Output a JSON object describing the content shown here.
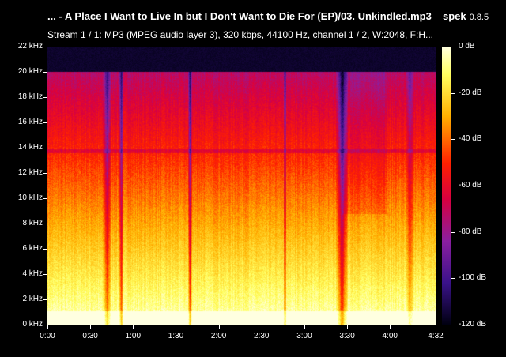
{
  "window": {
    "file_title": "... - A Place I Want to Live In but I Don't Want to Die For (EP)/03. Unkindled.mp3",
    "app_name": "spek",
    "app_version": "0.8.5",
    "stream_info": "Stream 1 / 1: MP3 (MPEG audio layer 3), 320 kbps, 44100 Hz, channel 1 / 2, W:2048, F:H..."
  },
  "freq_axis": [
    "0 kHz",
    "2 kHz",
    "4 kHz",
    "6 kHz",
    "8 kHz",
    "10 kHz",
    "12 kHz",
    "14 kHz",
    "16 kHz",
    "18 kHz",
    "20 kHz",
    "22 kHz"
  ],
  "time_axis": [
    "0:00",
    "0:30",
    "1:00",
    "1:30",
    "2:00",
    "2:30",
    "3:00",
    "3:30",
    "4:00",
    "4:32"
  ],
  "db_axis": [
    "0 dB",
    "-20 dB",
    "-40 dB",
    "-60 dB",
    "-80 dB",
    "-100 dB",
    "-120 dB"
  ],
  "colors": {
    "background": "#000000",
    "text": "#ffffff"
  },
  "spectrogram": {
    "duration": "4:32",
    "max_freq": "22 kHz",
    "cutoff_freq": "20 kHz"
  }
}
